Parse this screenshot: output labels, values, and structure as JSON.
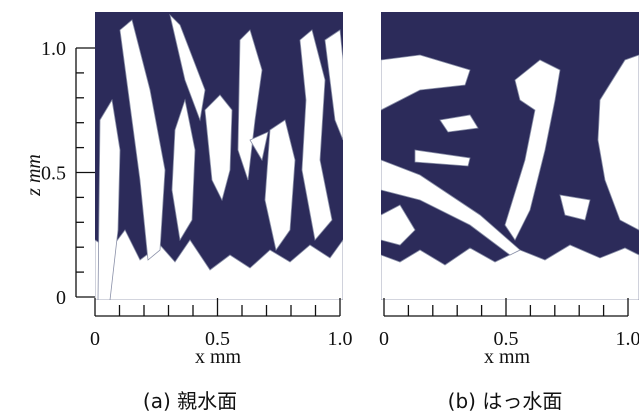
{
  "panels": [
    {
      "caption": "(a) 親水面",
      "x_label": "x mm",
      "y_label": "z mm",
      "x_ticks": [
        "0",
        "0.5",
        "1.0"
      ],
      "y_ticks": [
        "1.0",
        "0.5",
        "0"
      ]
    },
    {
      "caption": "(b) はっ水面",
      "x_label": "x mm",
      "x_ticks": [
        "0",
        "0.5",
        "1.0"
      ]
    }
  ]
}
